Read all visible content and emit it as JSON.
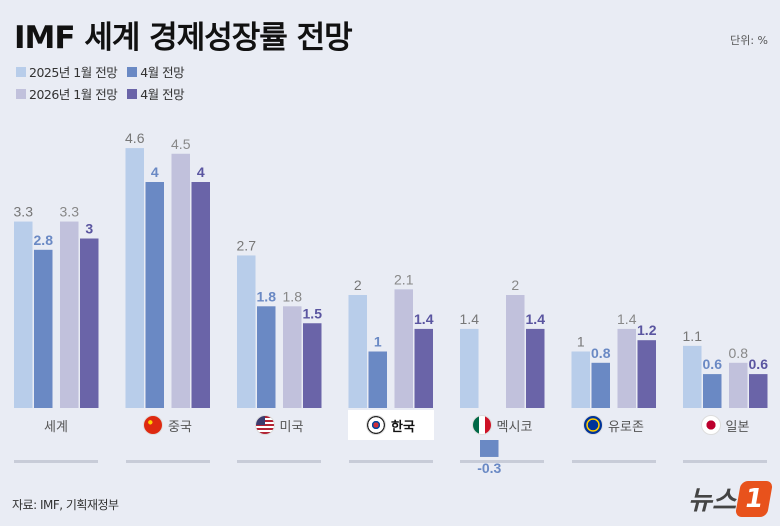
{
  "title": "IMF 세계 경제성장률 전망",
  "unit": "단위: %",
  "source": "자료: IMF, 기획재정부",
  "logo": {
    "text": "뉴스",
    "mark": "1"
  },
  "colors": {
    "s2025jan": "#b8cdea",
    "s2025apr": "#6a89c4",
    "s2026jan": "#c1c1dc",
    "s2026apr": "#6a64a8",
    "background": "#e9ecf4"
  },
  "chart_data": {
    "type": "bar",
    "categories": [
      "세계",
      "중국",
      "미국",
      "한국",
      "멕시코",
      "유로존",
      "일본"
    ],
    "flags": [
      "none",
      "china-flag-icon",
      "usa-flag-icon",
      "korea-flag-icon",
      "mexico-flag-icon",
      "eu-flag-icon",
      "japan-flag-icon"
    ],
    "highlight": "한국",
    "legend_rows": [
      [
        "2025년 1월 전망",
        "4월 전망"
      ],
      [
        "2026년 1월 전망",
        "4월 전망"
      ]
    ],
    "series": [
      {
        "name": "2025년 1월 전망",
        "values": [
          3.3,
          4.6,
          2.7,
          2.0,
          1.4,
          1.0,
          1.1
        ],
        "labels": [
          "3.3",
          "4.6",
          "2.7",
          "2",
          "1.4",
          "1",
          "1.1"
        ]
      },
      {
        "name": "2025년 4월 전망",
        "values": [
          2.8,
          4.0,
          1.8,
          1.0,
          -0.3,
          0.8,
          0.6
        ],
        "labels": [
          "2.8",
          "4",
          "1.8",
          "1",
          "-0.3",
          "0.8",
          "0.6"
        ]
      },
      {
        "name": "2026년 1월 전망",
        "values": [
          3.3,
          4.5,
          1.8,
          2.1,
          2.0,
          1.4,
          0.8
        ],
        "labels": [
          "3.3",
          "4.5",
          "1.8",
          "2.1",
          "2",
          "1.4",
          "0.8"
        ]
      },
      {
        "name": "2026년 4월 전망",
        "values": [
          3.0,
          4.0,
          1.5,
          1.4,
          1.4,
          1.2,
          0.6
        ],
        "labels": [
          "3",
          "4",
          "1.5",
          "1.4",
          "1.4",
          "1.2",
          "0.6"
        ]
      }
    ]
  }
}
